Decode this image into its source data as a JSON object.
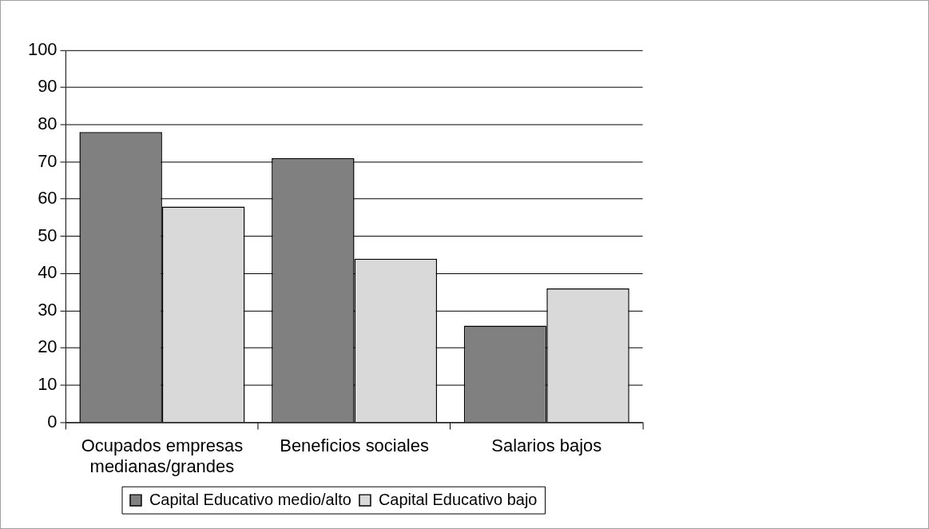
{
  "chart_data": {
    "type": "bar",
    "categories": [
      "Ocupados empresas medianas/grandes",
      "Beneficios sociales",
      "Salarios bajos"
    ],
    "series": [
      {
        "name": "Capital Educativo medio/alto",
        "color": "#808080",
        "values": [
          78,
          71,
          26
        ]
      },
      {
        "name": "Capital Educativo bajo",
        "color": "#d9d9d9",
        "values": [
          58,
          44,
          36
        ]
      }
    ],
    "ylim": [
      0,
      100
    ],
    "yticks": [
      0,
      10,
      20,
      30,
      40,
      50,
      60,
      70,
      80,
      90,
      100
    ],
    "grid": "y",
    "legend": "bottom"
  }
}
